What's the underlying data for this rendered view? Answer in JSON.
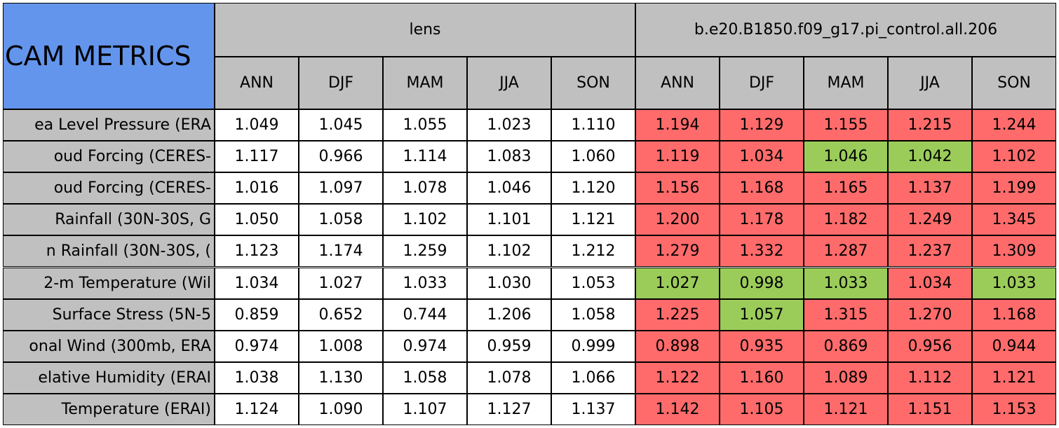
{
  "header": {
    "title": "CAM METRICS",
    "groups": [
      {
        "name": "lens",
        "color": "#c0c0c0",
        "seasons": [
          "ANN",
          "DJF",
          "MAM",
          "JJA",
          "SON"
        ]
      },
      {
        "name": "b.e20.B1850.f09_g17.pi_control.all.206",
        "color": "#c0c0c0",
        "seasons": [
          "ANN",
          "DJF",
          "MAM",
          "JJA",
          "SON"
        ]
      }
    ],
    "title_color": "#6495ed"
  },
  "table": {
    "label_color": "#c0c0c0",
    "rows": [
      {
        "label": "ea Level Pressure (ERA",
        "values": [
          "1.049",
          "1.045",
          "1.055",
          "1.023",
          "1.110",
          "1.194",
          "1.129",
          "1.155",
          "1.215",
          "1.244"
        ],
        "colors": [
          "#ffffff",
          "#ffffff",
          "#ffffff",
          "#ffffff",
          "#ffffff",
          "#ff6b6b",
          "#ff6b6b",
          "#ff6b6b",
          "#ff6b6b",
          "#ff6b6b"
        ]
      },
      {
        "label": "oud Forcing (CERES-",
        "values": [
          "1.117",
          "0.966",
          "1.114",
          "1.083",
          "1.060",
          "1.119",
          "1.034",
          "1.046",
          "1.042",
          "1.102"
        ],
        "colors": [
          "#ffffff",
          "#ffffff",
          "#ffffff",
          "#ffffff",
          "#ffffff",
          "#ff6b6b",
          "#ff6b6b",
          "#9bcc5a",
          "#9bcc5a",
          "#ff6b6b"
        ]
      },
      {
        "label": "oud Forcing (CERES-",
        "values": [
          "1.016",
          "1.097",
          "1.078",
          "1.046",
          "1.120",
          "1.156",
          "1.168",
          "1.165",
          "1.137",
          "1.199"
        ],
        "colors": [
          "#ffffff",
          "#ffffff",
          "#ffffff",
          "#ffffff",
          "#ffffff",
          "#ff6b6b",
          "#ff6b6b",
          "#ff6b6b",
          "#ff6b6b",
          "#ff6b6b"
        ]
      },
      {
        "label": "Rainfall (30N-30S, G",
        "values": [
          "1.050",
          "1.058",
          "1.102",
          "1.101",
          "1.121",
          "1.200",
          "1.178",
          "1.182",
          "1.249",
          "1.345"
        ],
        "colors": [
          "#ffffff",
          "#ffffff",
          "#ffffff",
          "#ffffff",
          "#ffffff",
          "#ff6b6b",
          "#ff6b6b",
          "#ff6b6b",
          "#ff6b6b",
          "#ff6b6b"
        ]
      },
      {
        "label": "n Rainfall (30N-30S, (",
        "values": [
          "1.123",
          "1.174",
          "1.259",
          "1.102",
          "1.212",
          "1.279",
          "1.332",
          "1.287",
          "1.237",
          "1.309"
        ],
        "colors": [
          "#ffffff",
          "#ffffff",
          "#ffffff",
          "#ffffff",
          "#ffffff",
          "#ff6b6b",
          "#ff6b6b",
          "#ff6b6b",
          "#ff6b6b",
          "#ff6b6b"
        ]
      },
      {
        "label": "2-m Temperature (Wil",
        "values": [
          "1.034",
          "1.027",
          "1.033",
          "1.030",
          "1.053",
          "1.027",
          "0.998",
          "1.033",
          "1.034",
          "1.033"
        ],
        "colors": [
          "#ffffff",
          "#ffffff",
          "#ffffff",
          "#ffffff",
          "#ffffff",
          "#9bcc5a",
          "#9bcc5a",
          "#9bcc5a",
          "#ff6b6b",
          "#9bcc5a"
        ]
      },
      {
        "label": "Surface Stress (5N-5",
        "values": [
          "0.859",
          "0.652",
          "0.744",
          "1.206",
          "1.058",
          "1.225",
          "1.057",
          "1.315",
          "1.270",
          "1.168"
        ],
        "colors": [
          "#ffffff",
          "#ffffff",
          "#ffffff",
          "#ffffff",
          "#ffffff",
          "#ff6b6b",
          "#9bcc5a",
          "#ff6b6b",
          "#ff6b6b",
          "#ff6b6b"
        ]
      },
      {
        "label": "onal Wind (300mb, ERA",
        "values": [
          "0.974",
          "1.008",
          "0.974",
          "0.959",
          "0.999",
          "0.898",
          "0.935",
          "0.869",
          "0.956",
          "0.944"
        ],
        "colors": [
          "#ffffff",
          "#ffffff",
          "#ffffff",
          "#ffffff",
          "#ffffff",
          "#ff6b6b",
          "#ff6b6b",
          "#ff6b6b",
          "#ff6b6b",
          "#ff6b6b"
        ]
      },
      {
        "label": "elative Humidity (ERAI",
        "values": [
          "1.038",
          "1.130",
          "1.058",
          "1.078",
          "1.066",
          "1.122",
          "1.160",
          "1.089",
          "1.112",
          "1.121"
        ],
        "colors": [
          "#ffffff",
          "#ffffff",
          "#ffffff",
          "#ffffff",
          "#ffffff",
          "#ff6b6b",
          "#ff6b6b",
          "#ff6b6b",
          "#ff6b6b",
          "#ff6b6b"
        ]
      },
      {
        "label": "Temperature (ERAI)",
        "values": [
          "1.124",
          "1.090",
          "1.107",
          "1.127",
          "1.137",
          "1.142",
          "1.105",
          "1.121",
          "1.151",
          "1.153"
        ],
        "colors": [
          "#ffffff",
          "#ffffff",
          "#ffffff",
          "#ffffff",
          "#ffffff",
          "#ff6b6b",
          "#ff6b6b",
          "#ff6b6b",
          "#ff6b6b",
          "#ff6b6b"
        ]
      }
    ]
  }
}
